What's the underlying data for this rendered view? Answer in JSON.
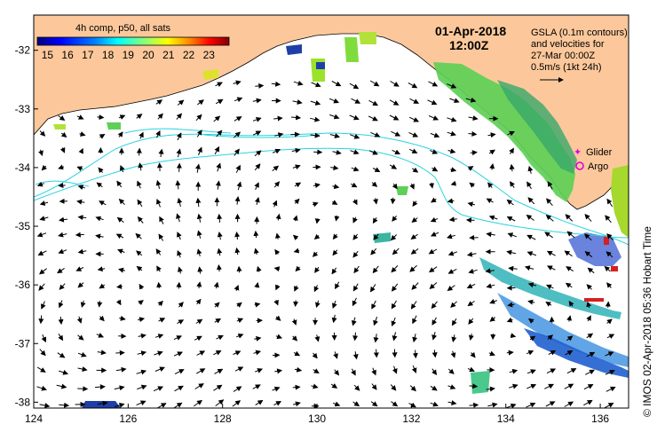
{
  "title": {
    "date": "01-Apr-2018",
    "time": "12:00Z"
  },
  "colorbar": {
    "title": "4h comp, p50, all sats",
    "labels": [
      "15",
      "16",
      "17",
      "18",
      "19",
      "20",
      "21",
      "22",
      "23"
    ],
    "min": 14.5,
    "max": 24,
    "colors": [
      "#00007f",
      "#0000ff",
      "#007fff",
      "#00ffff",
      "#7fff7f",
      "#ffff00",
      "#ff7f00",
      "#ff0000",
      "#7f0000"
    ]
  },
  "legend": {
    "line1": "GSLA (0.1m contours)",
    "line2": "and velocities for",
    "line3": "27-Mar 00:00Z",
    "line4": "0.5m/s (1kt 24h)",
    "glider_label": "Glider",
    "argo_label": "Argo"
  },
  "axes": {
    "x_ticks": [
      "124",
      "126",
      "128",
      "130",
      "132",
      "134",
      "136"
    ],
    "y_ticks": [
      "-32",
      "-33",
      "-34",
      "-35",
      "-36",
      "-37",
      "-38"
    ],
    "lon_range": [
      124,
      136.6
    ],
    "lat_range": [
      -38.1,
      -31.4
    ]
  },
  "credit": "© IMOS 02-Apr-2018 05:36 Hobart Time",
  "colors": {
    "land": "#fcc89b",
    "contour": "#29d3e0",
    "glider": "#e000e0",
    "argo": "#e000e0",
    "sst_warm": "#7fd84a",
    "sst_cool": "#2a6fd8"
  }
}
